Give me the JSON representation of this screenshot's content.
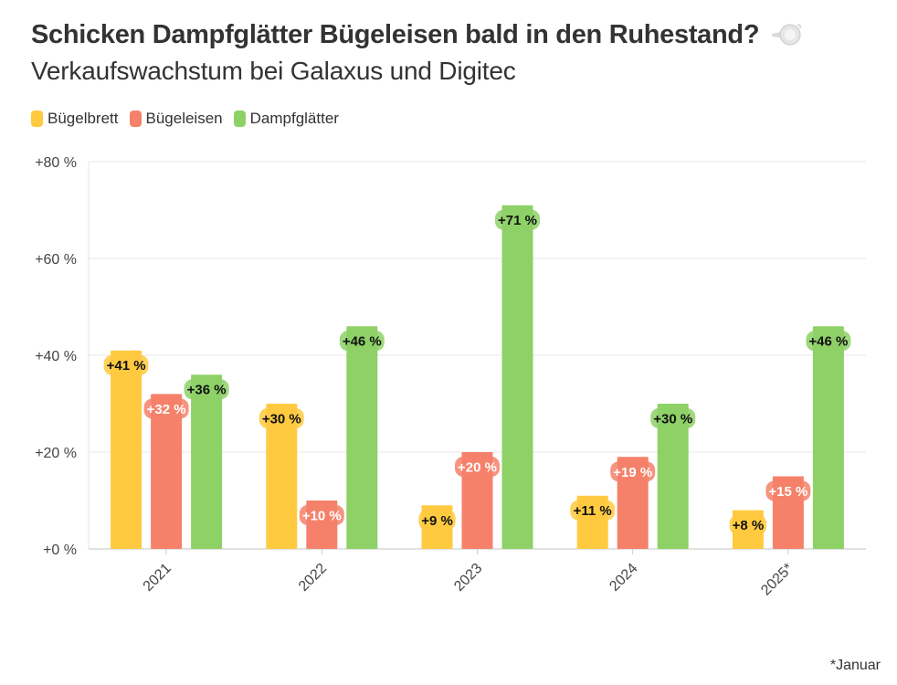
{
  "title": "Schicken Dampfglätter Bügeleisen bald in den Ruhestand?",
  "subtitle": "Verkaufswachstum bei Galaxus und Digitec",
  "footnote": "*Januar",
  "colors": {
    "Bügelbrett": "#FFCA40",
    "Bügeleisen": "#F5816A",
    "Dampfglätter": "#8ED167"
  },
  "chart_data": {
    "type": "bar",
    "categories": [
      "2021",
      "2022",
      "2023",
      "2024",
      "2025*"
    ],
    "series": [
      {
        "name": "Bügelbrett",
        "values": [
          41,
          30,
          9,
          11,
          8
        ]
      },
      {
        "name": "Bügeleisen",
        "values": [
          32,
          10,
          20,
          19,
          15
        ]
      },
      {
        "name": "Dampfglätter",
        "values": [
          36,
          46,
          71,
          30,
          46
        ]
      }
    ],
    "data_labels": [
      [
        "+41 %",
        "+30 %",
        "+9 %",
        "+11 %",
        "+8 %"
      ],
      [
        "+32 %",
        "+10 %",
        "+20 %",
        "+19 %",
        "+15 %"
      ],
      [
        "+36 %",
        "+46 %",
        "+71 %",
        "+30 %",
        "+46 %"
      ]
    ],
    "ylim": [
      0,
      80
    ],
    "yticks": [
      0,
      20,
      40,
      60,
      80
    ],
    "ytick_labels": [
      "+0 %",
      "+20 %",
      "+40 %",
      "+60 %",
      "+80 %"
    ],
    "grid": true,
    "legend_position": "top-left"
  }
}
